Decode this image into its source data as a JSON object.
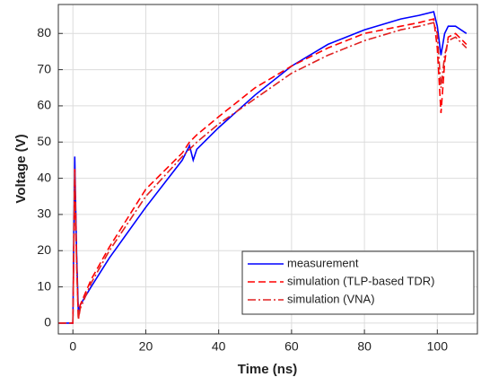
{
  "chart_data": {
    "type": "line",
    "xlabel": "Time (ns)",
    "ylabel": "Voltage (V)",
    "x": [
      -4,
      0,
      0.5,
      1,
      1.5,
      2,
      5,
      10,
      20,
      30,
      32,
      33,
      34,
      40,
      50,
      60,
      70,
      80,
      90,
      95,
      99,
      100,
      101,
      102,
      103,
      105,
      108
    ],
    "series": [
      {
        "name": "measurement",
        "color": "#0000ff",
        "linestyle": "solid",
        "values": [
          0,
          0,
          46,
          20,
          3,
          5,
          10,
          18,
          32,
          45,
          49,
          45,
          48,
          54,
          63,
          71,
          77,
          81,
          84,
          85,
          86,
          82,
          74,
          80,
          82,
          82,
          80
        ]
      },
      {
        "name": "simulation (TLP-based TDR)",
        "color": "#ff0000",
        "linestyle": "dashed",
        "values": [
          0,
          0,
          43,
          18,
          1,
          5,
          12,
          21,
          37,
          47,
          50,
          51,
          52,
          57,
          65,
          71,
          76,
          80,
          82,
          83,
          84,
          76,
          58,
          72,
          79,
          80,
          77
        ]
      },
      {
        "name": "simulation (VNA)",
        "color": "#e02020",
        "linestyle": "dashdot",
        "values": [
          0,
          0,
          42,
          17,
          1,
          4,
          11,
          20,
          35,
          46,
          48,
          49,
          50,
          55,
          62,
          69,
          74,
          78,
          81,
          82,
          83,
          80,
          65,
          74,
          78,
          79,
          76
        ]
      }
    ],
    "xlim": [
      -4,
      111
    ],
    "ylim": [
      -3,
      88
    ],
    "xticks": [
      0,
      20,
      40,
      60,
      80,
      100
    ],
    "yticks": [
      0,
      10,
      20,
      30,
      40,
      50,
      60,
      70,
      80
    ],
    "grid": true,
    "legend": "lower right"
  }
}
